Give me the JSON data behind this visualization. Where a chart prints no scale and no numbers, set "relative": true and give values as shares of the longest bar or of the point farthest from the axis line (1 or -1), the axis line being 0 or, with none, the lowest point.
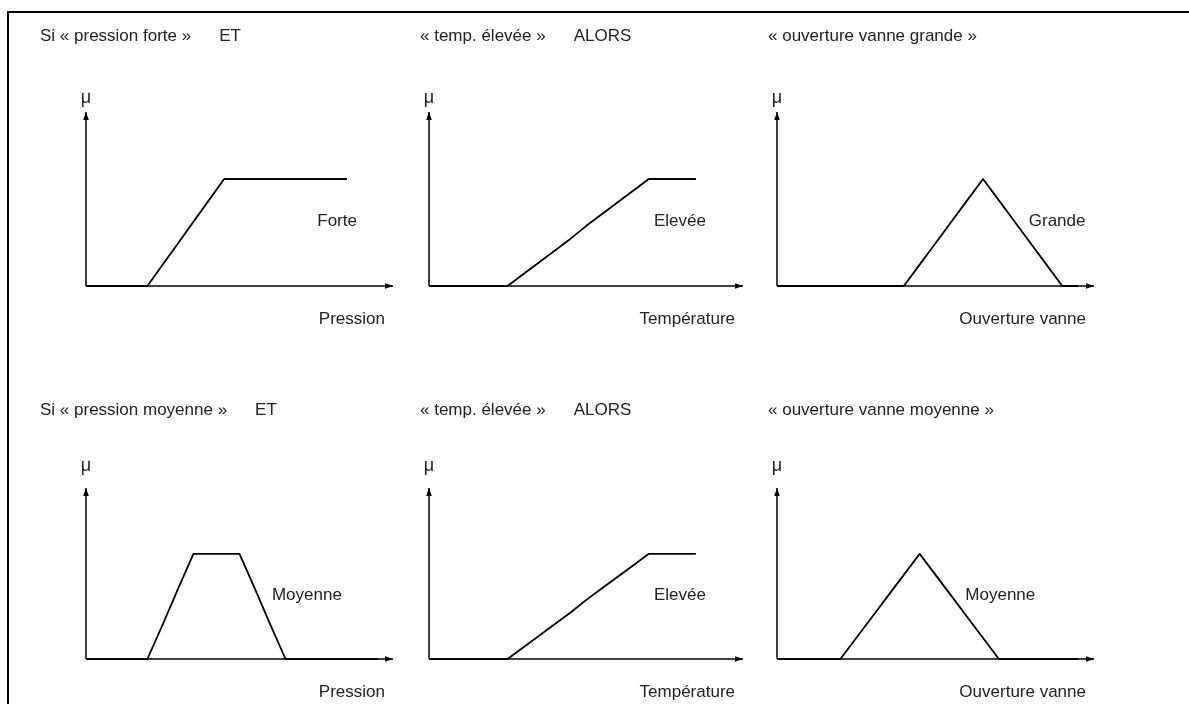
{
  "chart_data": [
    {
      "type": "line",
      "relative": true,
      "title": "Si « pression forte »",
      "annotations": [
        "ET"
      ],
      "ylabel": "μ",
      "xlabel": "Pression",
      "categories": [
        null,
        null,
        null,
        null,
        null,
        null,
        null,
        null,
        null,
        null,
        null,
        null,
        null,
        null,
        null,
        null,
        null,
        null,
        null,
        null
      ],
      "series": [
        {
          "name": "Forte",
          "color": "#000000",
          "values": [
            0,
            0,
            0,
            0,
            0,
            0.2,
            0.4,
            0.6,
            0.8,
            1,
            1,
            1,
            1,
            1,
            1,
            1,
            1,
            1,
            null,
            null
          ]
        }
      ]
    },
    {
      "type": "line",
      "relative": true,
      "title": "« temp. élevée »",
      "annotations": [
        "ALORS"
      ],
      "ylabel": "μ",
      "xlabel": "Température",
      "categories": [
        null,
        null,
        null,
        null,
        null,
        null,
        null,
        null,
        null,
        null,
        null,
        null,
        null,
        null,
        null,
        null,
        null,
        null,
        null,
        null
      ],
      "series": [
        {
          "name": "Elevée",
          "color": "#000000",
          "values": [
            0,
            0,
            0,
            0,
            0,
            0,
            0.11,
            0.22,
            0.33,
            0.44,
            0.56,
            0.67,
            0.78,
            0.89,
            1,
            1,
            1,
            1,
            null,
            null
          ]
        }
      ]
    },
    {
      "type": "line",
      "relative": true,
      "title": "« ouverture vanne grande »",
      "ylabel": "μ",
      "xlabel": "Ouverture vanne",
      "categories": [
        null,
        null,
        null,
        null,
        null,
        null,
        null,
        null,
        null,
        null,
        null,
        null,
        null,
        null,
        null,
        null,
        null,
        null,
        null,
        null
      ],
      "series": [
        {
          "name": "Grande",
          "color": "#000000",
          "values": [
            0,
            0,
            0,
            0,
            0,
            0,
            0,
            0,
            0,
            0.2,
            0.4,
            0.6,
            0.8,
            1,
            0.8,
            0.6,
            0.4,
            0.2,
            0,
            0
          ]
        }
      ]
    },
    {
      "type": "line",
      "relative": true,
      "title": "Si « pression moyenne »",
      "annotations": [
        "ET"
      ],
      "ylabel": "μ",
      "xlabel": "Pression",
      "categories": [
        null,
        null,
        null,
        null,
        null,
        null,
        null,
        null,
        null,
        null,
        null,
        null,
        null,
        null,
        null,
        null,
        null,
        null,
        null,
        null
      ],
      "series": [
        {
          "name": "Moyenne",
          "color": "#000000",
          "values": [
            0,
            0,
            0,
            0,
            0,
            0.33,
            0.67,
            1,
            1,
            1,
            1,
            0.67,
            0.33,
            0,
            0,
            0,
            0,
            0,
            0,
            0
          ]
        }
      ]
    },
    {
      "type": "line",
      "relative": true,
      "title": "« temp. élevée »",
      "annotations": [
        "ALORS"
      ],
      "ylabel": "μ",
      "xlabel": "Température",
      "categories": [
        null,
        null,
        null,
        null,
        null,
        null,
        null,
        null,
        null,
        null,
        null,
        null,
        null,
        null,
        null,
        null,
        null,
        null,
        null,
        null
      ],
      "series": [
        {
          "name": "Elevée",
          "color": "#000000",
          "values": [
            0,
            0,
            0,
            0,
            0,
            0,
            0.11,
            0.22,
            0.33,
            0.44,
            0.56,
            0.67,
            0.78,
            0.89,
            1,
            1,
            1,
            1,
            null,
            null
          ]
        }
      ]
    },
    {
      "type": "line",
      "relative": true,
      "title": "« ouverture vanne moyenne »",
      "ylabel": "μ",
      "xlabel": "Ouverture vanne",
      "categories": [
        null,
        null,
        null,
        null,
        null,
        null,
        null,
        null,
        null,
        null,
        null,
        null,
        null,
        null,
        null,
        null,
        null,
        null,
        null,
        null
      ],
      "series": [
        {
          "name": "Moyenne",
          "color": "#000000",
          "values": [
            0,
            0,
            0,
            0,
            0,
            0.2,
            0.4,
            0.6,
            0.8,
            1,
            0.8,
            0.6,
            0.4,
            0.2,
            0,
            0,
            0,
            0,
            0,
            0
          ]
        }
      ]
    }
  ]
}
